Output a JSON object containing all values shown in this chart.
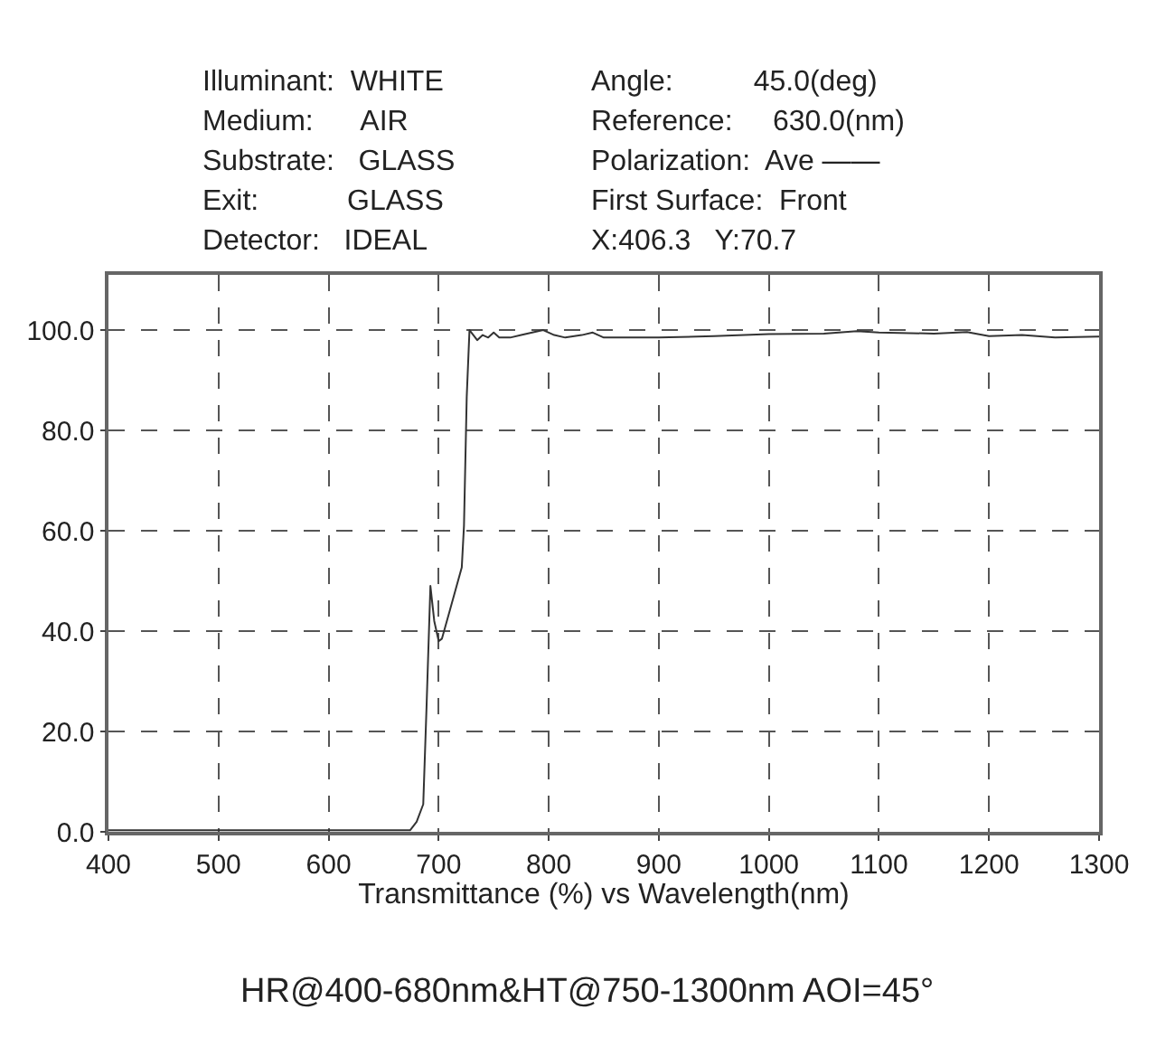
{
  "chart_data": {
    "type": "line",
    "xlabel": "Transmittance (%) vs Wavelength(nm)",
    "annotations": [
      "Illuminant:  WHITE",
      "Medium:      AIR",
      "Substrate:   GLASS",
      "Exit:           GLASS",
      "Detector:   IDEAL",
      "Angle:          45.0(deg)",
      "Reference:     630.0(nm)",
      "Polarization:  Ave ——",
      "First Surface:  Front",
      "X:406.3   Y:70.7",
      "HR@400-680nm&HT@750-1300nm AOI=45°"
    ],
    "x": [
      400,
      500,
      600,
      674,
      680,
      686,
      689,
      692.5,
      696,
      700,
      703,
      710,
      721,
      723,
      725.5,
      728,
      735,
      740,
      745,
      750,
      755,
      765,
      775,
      785,
      795,
      805,
      815,
      830,
      840,
      850,
      870,
      900,
      950,
      1000,
      1050,
      1080,
      1100,
      1150,
      1180,
      1200,
      1230,
      1260,
      1300
    ],
    "series": [
      {
        "color": "#333333",
        "values": [
          0.3,
          0.3,
          0.3,
          0.3,
          2,
          5.5,
          25,
          49,
          42,
          38,
          38.5,
          44,
          52.7,
          61,
          86.7,
          100,
          98,
          99,
          98.5,
          99.5,
          98.5,
          98.5,
          99,
          99.5,
          100,
          99,
          98.5,
          99,
          99.5,
          98.5,
          98.5,
          98.5,
          98.8,
          99.2,
          99.3,
          99.8,
          99.5,
          99.3,
          99.6,
          98.8,
          99,
          98.5,
          98.7
        ]
      }
    ],
    "xlim": [
      400,
      1300
    ],
    "xticks": [
      400,
      500,
      600,
      700,
      800,
      900,
      1000,
      1100,
      1200,
      1300
    ],
    "ylim": [
      0,
      111
    ],
    "yticks": [
      {
        "value": 0,
        "label": "0.0"
      },
      {
        "value": 20,
        "label": "20.0"
      },
      {
        "value": 40,
        "label": "40.0"
      },
      {
        "value": 60,
        "label": "60.0"
      },
      {
        "value": 80,
        "label": "80.0"
      },
      {
        "value": 100,
        "label": "100.0"
      }
    ],
    "grid": true,
    "line_style": "solid"
  }
}
